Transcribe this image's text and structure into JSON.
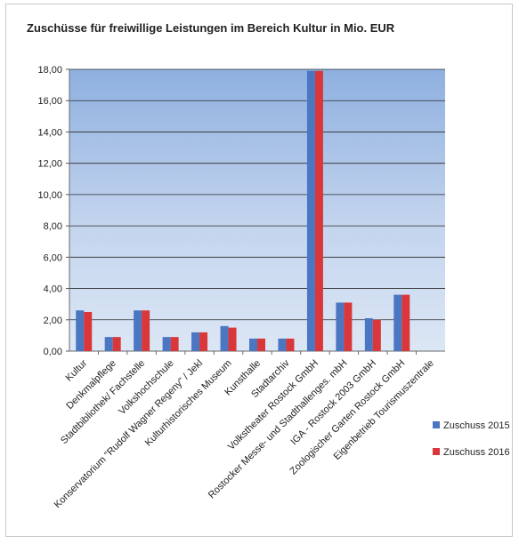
{
  "chart_data": {
    "type": "bar",
    "title": "Zuschüsse für freiwillige Leistungen im Bereich Kultur in Mio. EUR",
    "xlabel": "",
    "ylabel": "",
    "ylim": [
      0,
      18
    ],
    "yticks": [
      "0,00",
      "2,00",
      "4,00",
      "6,00",
      "8,00",
      "10,00",
      "12,00",
      "14,00",
      "16,00",
      "18,00"
    ],
    "grid": true,
    "legend_position": "right",
    "categories": [
      "Kultur",
      "Denkmalpflege",
      "Stadtbibliothek/ Fachstelle",
      "Volkshochschule",
      "Konservatorium \"Rudolf Wagner Regeny\" / Jekl",
      "Kulturhistorisches Museum",
      "Kunsthalle",
      "Stadtarchiv",
      "Volkstheater Rostock GmbH",
      "Rostocker Messe- und Stadthallenges. mbH",
      "IGA - Rostock 2003 GmbH",
      "Zoologischer Garten Rostock GmbH",
      "Eigenbetrieb Tourismuszentrale"
    ],
    "series": [
      {
        "name": "Zuschuss 2015",
        "color": "#4a76c2",
        "values": [
          2.6,
          0.9,
          2.6,
          0.9,
          1.2,
          1.6,
          0.8,
          0.8,
          17.9,
          3.1,
          2.1,
          3.6,
          0
        ]
      },
      {
        "name": "Zuschuss 2016",
        "color": "#d9373a",
        "values": [
          2.5,
          0.9,
          2.6,
          0.9,
          1.2,
          1.5,
          0.8,
          0.8,
          17.9,
          3.1,
          2.0,
          3.6,
          0
        ]
      }
    ]
  }
}
